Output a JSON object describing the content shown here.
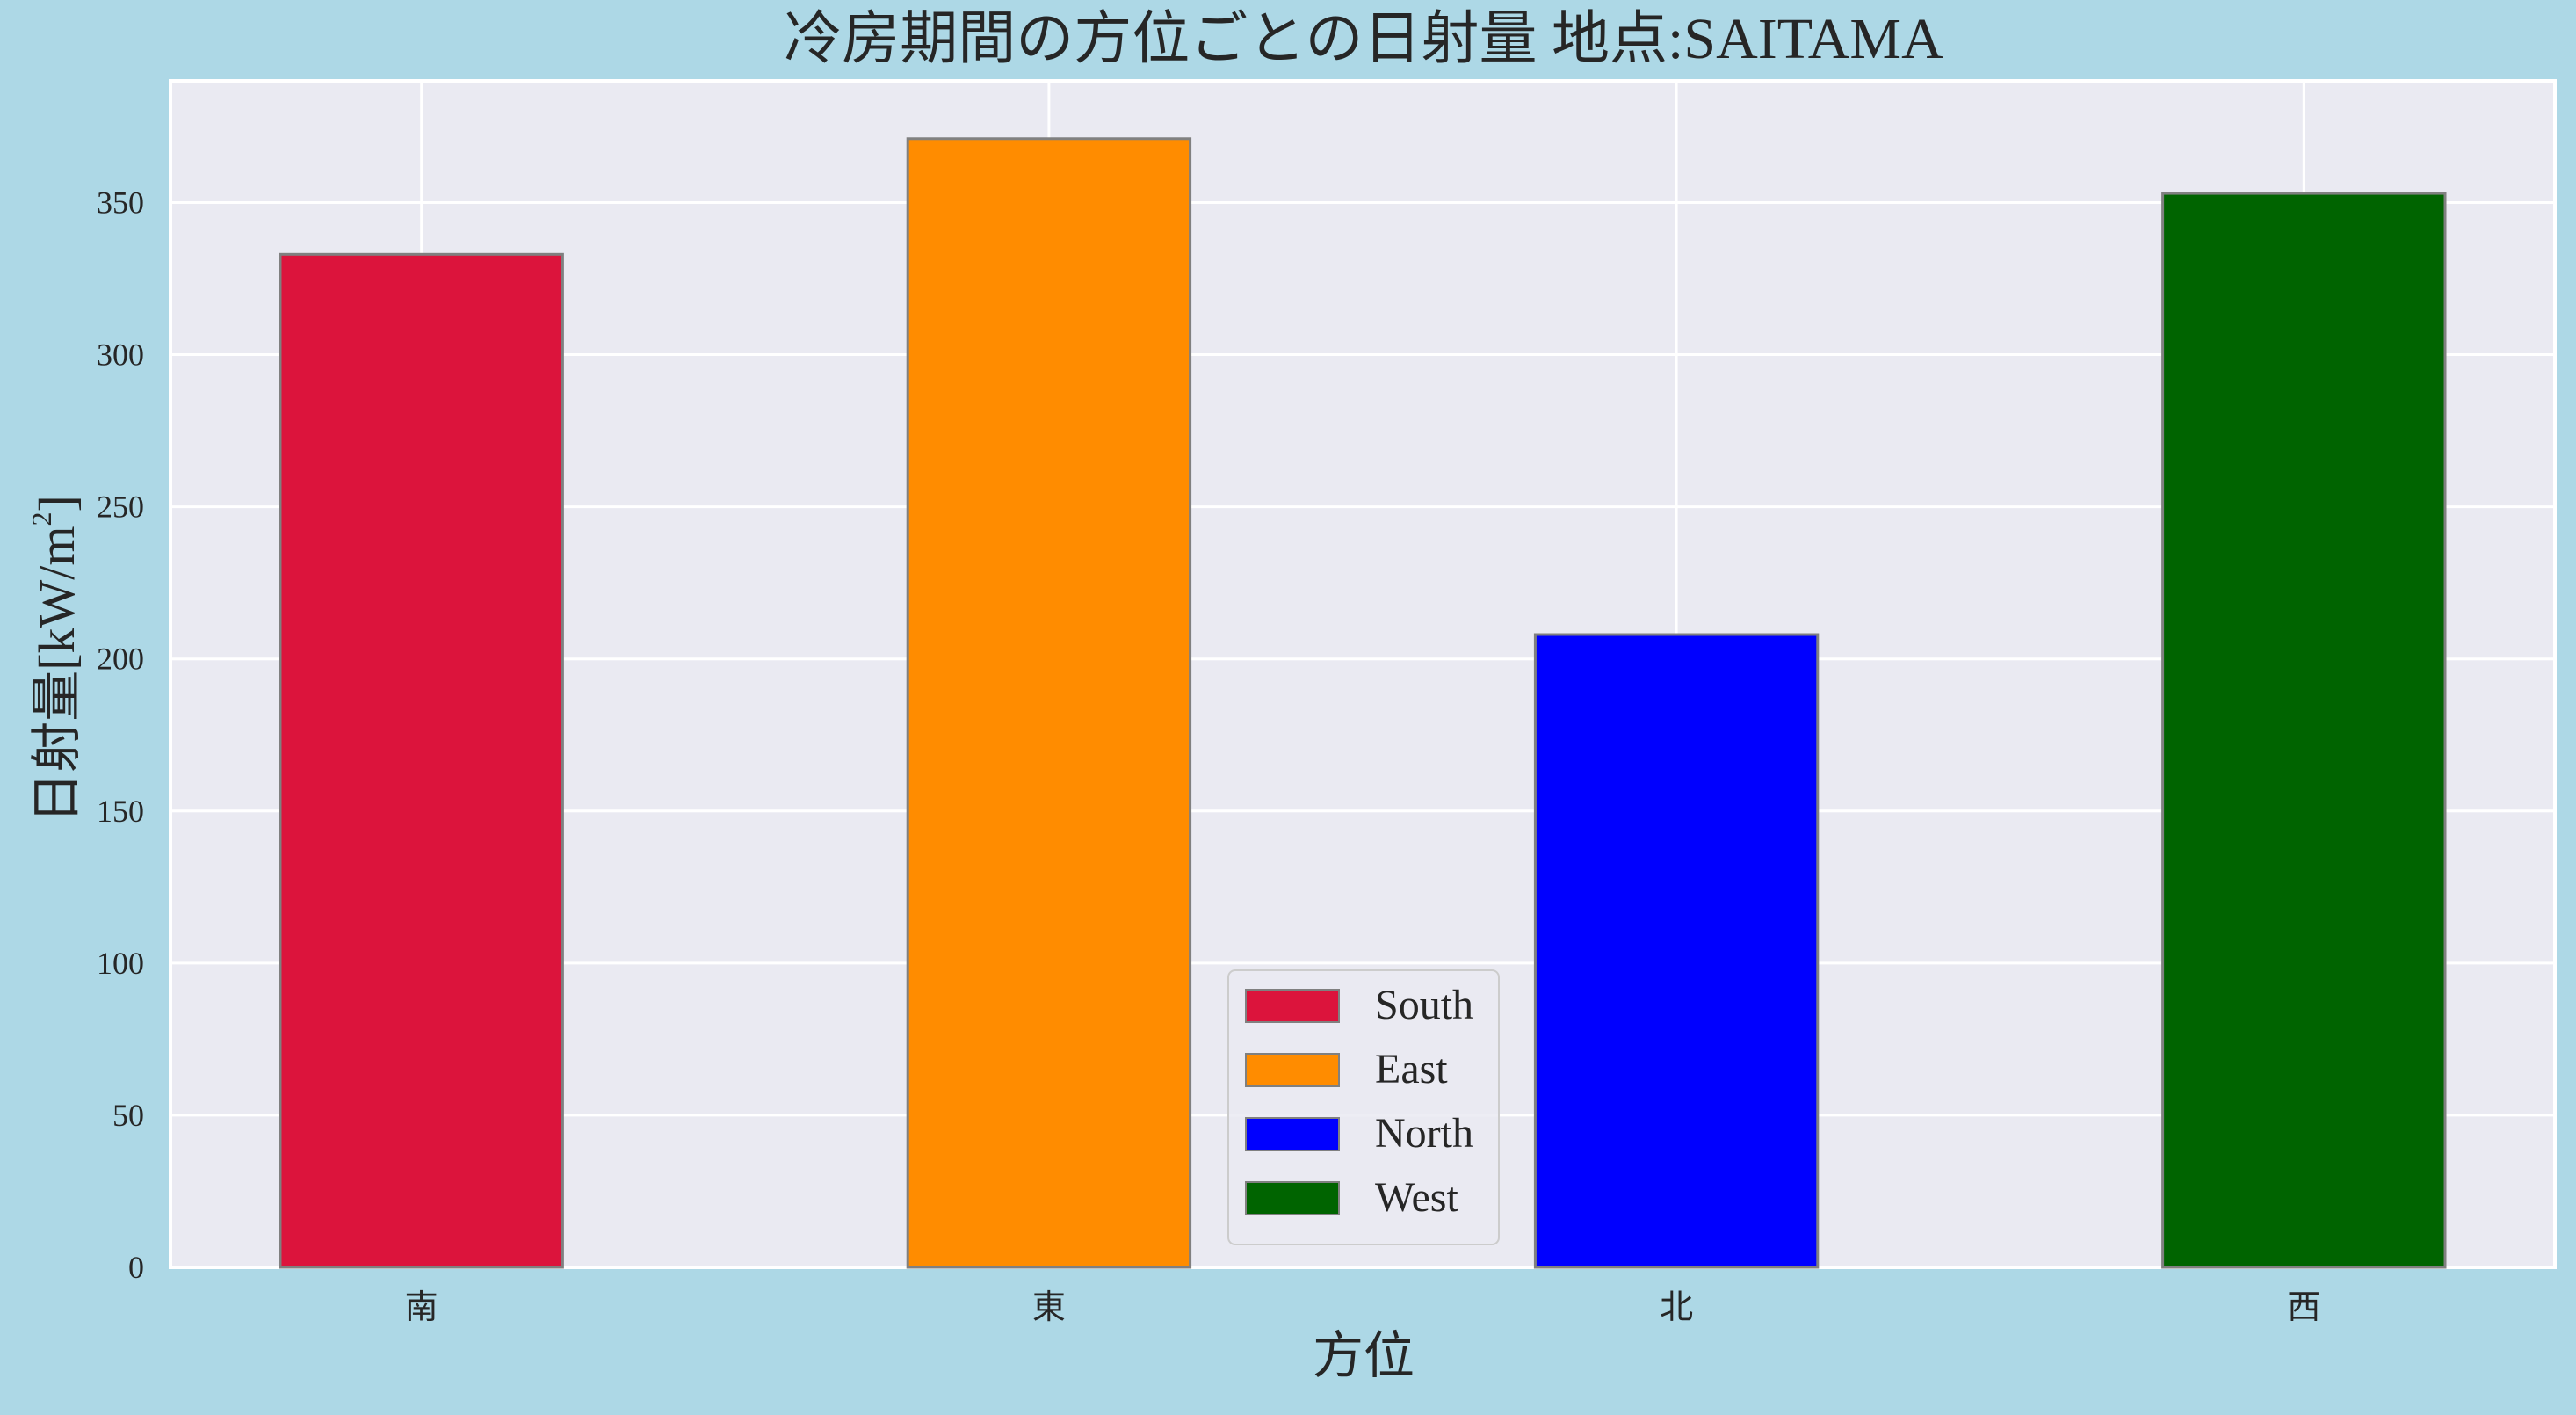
{
  "chart_data": {
    "type": "bar",
    "title": "冷房期間の方位ごとの日射量   地点:SAITAMA",
    "xlabel": "方位",
    "ylabel": "日射量[kW/m",
    "ylabel_sup": "2",
    "ylabel_close": "]",
    "categories": [
      "南",
      "東",
      "北",
      "西"
    ],
    "values": [
      333,
      371,
      208,
      353
    ],
    "series_labels": [
      "South",
      "East",
      "North",
      "West"
    ],
    "colors": [
      "#dc143c",
      "#ff8c00",
      "#0000ff",
      "#006400"
    ],
    "yticks": [
      0,
      50,
      100,
      150,
      200,
      250,
      300,
      350
    ],
    "ylim": [
      0,
      390
    ],
    "grid": true,
    "legend_position": "bottom-center"
  },
  "style": {
    "figure_background": "#add8e6",
    "axes_background": "#eaeaf2",
    "grid_color": "#ffffff",
    "bar_edge_color": "#808080"
  }
}
